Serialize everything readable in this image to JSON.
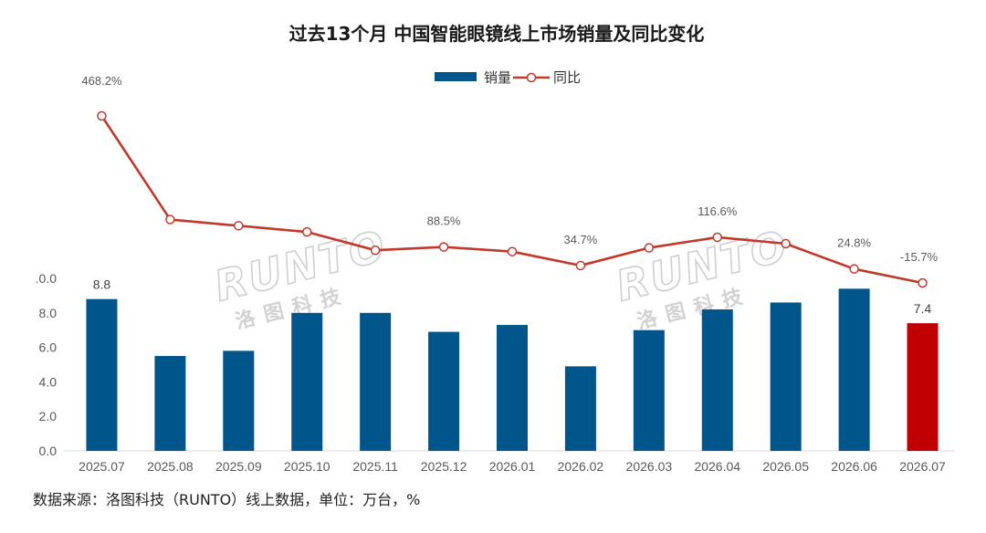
{
  "chart_data": {
    "type": "bar",
    "title": "过去13个月 中国智能眼镜线上市场销量及同比变化",
    "categories": [
      "2025.07",
      "2025.08",
      "2025.09",
      "2025.10",
      "2025.11",
      "2025.12",
      "2026.01",
      "2026.02",
      "2026.03",
      "2026.04",
      "2026.05",
      "2026.06",
      "2026.07"
    ],
    "series": [
      {
        "name": "销量",
        "type": "bar",
        "values": [
          8.8,
          5.5,
          5.8,
          8.0,
          8.0,
          6.9,
          7.3,
          4.9,
          7.0,
          8.2,
          8.6,
          9.4,
          7.4
        ],
        "color": "#00558a",
        "highlight_color": "#c00000",
        "highlight_index": 12
      },
      {
        "name": "同比",
        "type": "line",
        "values": [
          468.2,
          168.0,
          150.0,
          132.0,
          79.0,
          88.5,
          75.0,
          34.7,
          86.0,
          116.6,
          98.0,
          24.8,
          -15.7
        ],
        "color": "#c0392b"
      }
    ],
    "bar_labels": [
      {
        "index": 0,
        "text": "8.8"
      },
      {
        "index": 12,
        "text": "7.4"
      }
    ],
    "line_labels": [
      {
        "index": 0,
        "text": "468.2%"
      },
      {
        "index": 5,
        "text": "88.5%"
      },
      {
        "index": 7,
        "text": "34.7%"
      },
      {
        "index": 9,
        "text": "116.6%"
      },
      {
        "index": 11,
        "text": "24.8%"
      },
      {
        "index": 12,
        "text": "-15.7%"
      }
    ],
    "y_ticks": [
      ".0.0",
      "8.0",
      "6.0",
      "4.0",
      "2.0",
      "0.0"
    ],
    "ylim": [
      0,
      10
    ],
    "line_ylim": [
      -120,
      520
    ],
    "legend": {
      "placement": "top-center",
      "items": [
        "销量",
        "同比"
      ]
    },
    "grid": false
  },
  "source_note": "数据来源：洛图科技（RUNTO）线上数据，单位：万台，%",
  "watermark": {
    "main": "RUNTO",
    "sub": "洛图科技"
  }
}
